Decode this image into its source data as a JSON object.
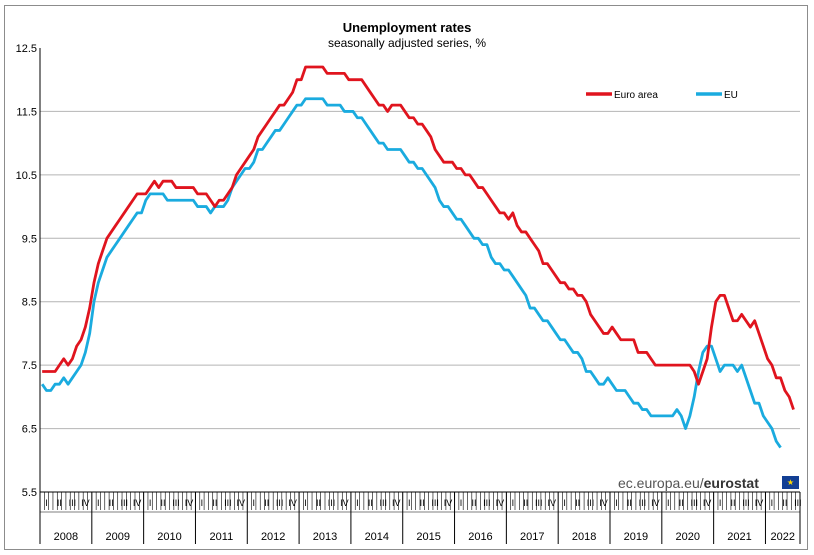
{
  "chart_data": {
    "type": "line",
    "title": "Unemployment rates",
    "subtitle": "seasonally adjusted series, %",
    "ylim": [
      5.5,
      12.5
    ],
    "y_ticks": [
      "12.5",
      "11.5",
      "10.5",
      "9.5",
      "8.5",
      "7.5",
      "6.5",
      "5.5"
    ],
    "quarter_labels": [
      "I",
      "II",
      "III",
      "IV"
    ],
    "year_labels": [
      "2008",
      "2009",
      "2010",
      "2011",
      "2012",
      "2013",
      "2014",
      "2015",
      "2016",
      "2017",
      "2018",
      "2019",
      "2020",
      "2021",
      "2022"
    ],
    "x_start": "2008-01",
    "x_end": "2022-02",
    "grid": "horizontal",
    "legend_position": "top-right",
    "series": [
      {
        "name": "Euro area",
        "color": "#e0141e",
        "values": [
          7.4,
          7.4,
          7.4,
          7.4,
          7.5,
          7.6,
          7.5,
          7.6,
          7.8,
          7.9,
          8.1,
          8.4,
          8.8,
          9.1,
          9.3,
          9.5,
          9.6,
          9.7,
          9.8,
          9.9,
          10.0,
          10.1,
          10.2,
          10.2,
          10.2,
          10.3,
          10.4,
          10.3,
          10.4,
          10.4,
          10.4,
          10.3,
          10.3,
          10.3,
          10.3,
          10.3,
          10.2,
          10.2,
          10.2,
          10.1,
          10.0,
          10.1,
          10.1,
          10.2,
          10.3,
          10.5,
          10.6,
          10.7,
          10.8,
          10.9,
          11.1,
          11.2,
          11.3,
          11.4,
          11.5,
          11.6,
          11.6,
          11.7,
          11.8,
          12.0,
          12.0,
          12.2,
          12.2,
          12.2,
          12.2,
          12.2,
          12.1,
          12.1,
          12.1,
          12.1,
          12.1,
          12.0,
          12.0,
          12.0,
          12.0,
          11.9,
          11.8,
          11.7,
          11.6,
          11.6,
          11.5,
          11.6,
          11.6,
          11.6,
          11.5,
          11.4,
          11.4,
          11.3,
          11.3,
          11.2,
          11.1,
          10.9,
          10.8,
          10.7,
          10.7,
          10.7,
          10.6,
          10.6,
          10.5,
          10.5,
          10.4,
          10.3,
          10.3,
          10.2,
          10.1,
          10.0,
          9.9,
          9.9,
          9.8,
          9.9,
          9.7,
          9.6,
          9.6,
          9.5,
          9.4,
          9.3,
          9.1,
          9.1,
          9.0,
          8.9,
          8.8,
          8.8,
          8.7,
          8.7,
          8.6,
          8.6,
          8.5,
          8.3,
          8.2,
          8.1,
          8.0,
          8.0,
          8.1,
          8.0,
          7.9,
          7.9,
          7.9,
          7.9,
          7.7,
          7.7,
          7.7,
          7.6,
          7.5,
          7.5,
          7.5,
          7.5,
          7.5,
          7.5,
          7.5,
          7.5,
          7.5,
          7.4,
          7.2,
          7.4,
          7.6,
          8.1,
          8.5,
          8.6,
          8.6,
          8.4,
          8.2,
          8.2,
          8.3,
          8.2,
          8.1,
          8.2,
          8.0,
          7.8,
          7.6,
          7.5,
          7.3,
          7.3,
          7.1,
          7.0,
          6.8
        ]
      },
      {
        "name": "EU",
        "color": "#1aabdf",
        "values": [
          7.2,
          7.1,
          7.1,
          7.2,
          7.2,
          7.3,
          7.2,
          7.3,
          7.4,
          7.5,
          7.7,
          8.0,
          8.5,
          8.8,
          9.0,
          9.2,
          9.3,
          9.4,
          9.5,
          9.6,
          9.7,
          9.8,
          9.9,
          9.9,
          10.1,
          10.2,
          10.2,
          10.2,
          10.2,
          10.1,
          10.1,
          10.1,
          10.1,
          10.1,
          10.1,
          10.1,
          10.0,
          10.0,
          10.0,
          9.9,
          10.0,
          10.0,
          10.0,
          10.1,
          10.3,
          10.4,
          10.5,
          10.6,
          10.6,
          10.7,
          10.9,
          10.9,
          11.0,
          11.1,
          11.2,
          11.2,
          11.3,
          11.4,
          11.5,
          11.6,
          11.6,
          11.7,
          11.7,
          11.7,
          11.7,
          11.7,
          11.6,
          11.6,
          11.6,
          11.6,
          11.5,
          11.5,
          11.5,
          11.4,
          11.4,
          11.3,
          11.2,
          11.1,
          11.0,
          11.0,
          10.9,
          10.9,
          10.9,
          10.9,
          10.8,
          10.7,
          10.7,
          10.6,
          10.6,
          10.5,
          10.4,
          10.3,
          10.1,
          10.0,
          10.0,
          9.9,
          9.8,
          9.8,
          9.7,
          9.6,
          9.5,
          9.5,
          9.4,
          9.4,
          9.2,
          9.1,
          9.1,
          9.0,
          9.0,
          8.9,
          8.8,
          8.7,
          8.6,
          8.4,
          8.4,
          8.3,
          8.2,
          8.2,
          8.1,
          8.0,
          7.9,
          7.9,
          7.8,
          7.7,
          7.7,
          7.6,
          7.4,
          7.4,
          7.3,
          7.2,
          7.2,
          7.3,
          7.2,
          7.1,
          7.1,
          7.1,
          7.0,
          6.9,
          6.9,
          6.8,
          6.8,
          6.7,
          6.7,
          6.7,
          6.7,
          6.7,
          6.7,
          6.8,
          6.7,
          6.5,
          6.7,
          7.0,
          7.4,
          7.7,
          7.8,
          7.8,
          7.6,
          7.4,
          7.5,
          7.5,
          7.5,
          7.4,
          7.5,
          7.3,
          7.1,
          6.9,
          6.9,
          6.7,
          6.6,
          6.5,
          6.3,
          6.2
        ]
      }
    ]
  },
  "brand": {
    "url": "ec.europa.eu/",
    "name": "eurostat",
    "flag_stars": "★"
  }
}
